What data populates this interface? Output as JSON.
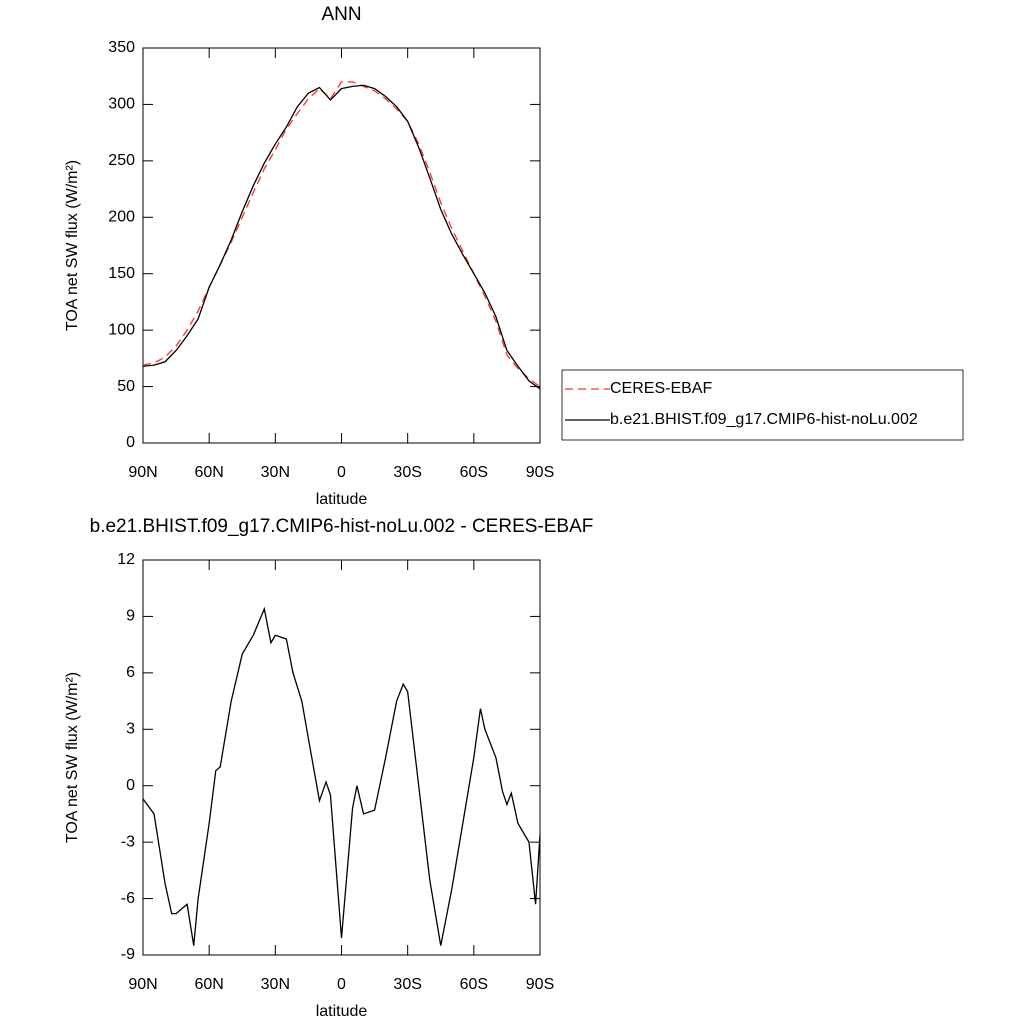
{
  "chart_data": [
    {
      "type": "line",
      "title": "ANN",
      "xlabel": "latitude",
      "ylabel": "TOA net SW flux (W/m²)",
      "x": [
        90,
        85,
        80,
        75,
        70,
        65,
        60,
        55,
        50,
        45,
        40,
        35,
        30,
        25,
        20,
        15,
        10,
        5,
        0,
        -5,
        -10,
        -15,
        -20,
        -25,
        -30,
        -35,
        -40,
        -45,
        -50,
        -55,
        -60,
        -65,
        -70,
        -75,
        -80,
        -85,
        -90
      ],
      "series": [
        {
          "name": "CERES-EBAF",
          "color": "#ff3030",
          "dashed": true,
          "values": [
            69,
            71,
            76,
            86,
            100,
            117,
            138,
            158,
            178,
            200,
            222,
            243,
            260,
            278,
            292,
            305,
            314,
            305,
            320,
            320,
            316,
            312,
            305,
            296,
            285,
            265,
            240,
            213,
            190,
            170,
            150,
            130,
            108,
            78,
            66,
            57,
            50
          ]
        },
        {
          "name": "b.e21.BHIST.f09_g17.CMIP6-hist-noLu.002",
          "color": "#000000",
          "dashed": false,
          "values": [
            68,
            69,
            72,
            82,
            95,
            110,
            138,
            158,
            180,
            205,
            228,
            248,
            265,
            280,
            298,
            310,
            315,
            304,
            314,
            316,
            317,
            314,
            307,
            298,
            285,
            262,
            235,
            207,
            185,
            167,
            150,
            133,
            112,
            82,
            68,
            55,
            48
          ]
        }
      ],
      "xlim": [
        90,
        -90
      ],
      "ylim": [
        0,
        350
      ],
      "xticks": [
        {
          "value": 90,
          "label": "90N"
        },
        {
          "value": 60,
          "label": "60N"
        },
        {
          "value": 30,
          "label": "30N"
        },
        0,
        {
          "value": -30,
          "label": "30S"
        },
        {
          "value": -60,
          "label": "60S"
        },
        {
          "value": -90,
          "label": "90S"
        }
      ],
      "yticks": [
        0,
        50,
        100,
        150,
        200,
        250,
        300,
        350
      ],
      "legend": "right"
    },
    {
      "type": "line",
      "title": "b.e21.BHIST.f09_g17.CMIP6-hist-noLu.002 - CERES-EBAF",
      "xlabel": "latitude",
      "ylabel": "TOA net SW flux (W/m²)",
      "x": [
        90,
        85,
        80,
        77,
        75,
        70,
        67,
        65,
        60,
        57,
        55,
        50,
        45,
        40,
        35,
        32,
        30,
        25,
        22,
        18,
        15,
        10,
        7,
        5,
        0,
        -5,
        -7,
        -10,
        -15,
        -20,
        -25,
        -28,
        -30,
        -35,
        -40,
        -45,
        -50,
        -55,
        -60,
        -63,
        -65,
        -70,
        -73,
        -75,
        -77,
        -80,
        -85,
        -88,
        -90
      ],
      "series": [
        {
          "color": "#000000",
          "dashed": false,
          "values": [
            -0.7,
            -1.5,
            -5.2,
            -6.8,
            -6.8,
            -6.3,
            -8.5,
            -6,
            -2,
            0.8,
            1,
            4.5,
            7,
            8,
            9.4,
            7.6,
            8,
            7.8,
            6,
            4.5,
            2.5,
            -0.8,
            0.2,
            -0.5,
            -8.1,
            -1.2,
            0,
            -1.5,
            -1.3,
            1.5,
            4.5,
            5.4,
            5,
            0,
            -5,
            -8.5,
            -5.5,
            -2,
            1.5,
            4.1,
            3,
            1.5,
            -0.3,
            -1,
            -0.4,
            -2,
            -3,
            -6.3,
            -2.6
          ]
        }
      ],
      "xlim": [
        90,
        -90
      ],
      "ylim": [
        -9,
        12
      ],
      "xticks": [
        {
          "value": 90,
          "label": "90N"
        },
        {
          "value": 60,
          "label": "60N"
        },
        {
          "value": 30,
          "label": "30N"
        },
        0,
        {
          "value": -30,
          "label": "30S"
        },
        {
          "value": -60,
          "label": "60S"
        },
        {
          "value": -90,
          "label": "90S"
        }
      ],
      "yticks": [
        -9,
        -6,
        -3,
        0,
        3,
        6,
        9,
        12
      ]
    }
  ]
}
